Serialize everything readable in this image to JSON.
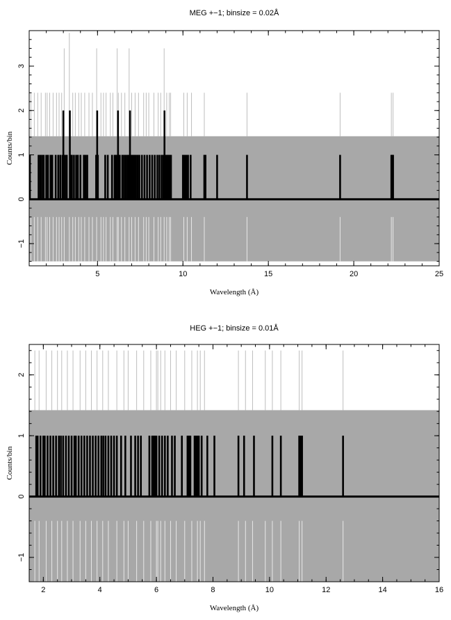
{
  "chart_data": [
    {
      "type": "line",
      "title": "MEG +−1; binsize = 0.02Å",
      "xlabel": "Wavelength (Å)",
      "ylabel": "Counts/bin",
      "xlim": [
        1.0,
        25.0
      ],
      "ylim": [
        -1.5,
        3.8
      ],
      "xticks": [
        5,
        10,
        15,
        20,
        25
      ],
      "yticks": [
        -1,
        0,
        1,
        2,
        3
      ],
      "band": {
        "name": "background band",
        "lower": -1.4,
        "upper": 1.42,
        "color": "#a8a8a8"
      },
      "colors": {
        "series": "#000000",
        "band": "#a8a8a8",
        "upper_spikes": "#bdbdbd",
        "lower_spikes": "#e8e8e8"
      },
      "series": [
        {
          "name": "counts",
          "x": [
            1.04,
            1.55,
            1.65,
            1.75,
            1.85,
            2.0,
            2.1,
            2.25,
            2.35,
            2.55,
            2.7,
            2.82,
            2.95,
            3.0,
            3.1,
            3.2,
            3.38,
            3.45,
            3.5,
            3.62,
            3.75,
            3.85,
            4.0,
            4.2,
            4.3,
            4.4,
            4.92,
            4.98,
            5.02,
            5.45,
            5.6,
            5.85,
            6.0,
            6.05,
            6.1,
            6.2,
            6.25,
            6.3,
            6.45,
            6.55,
            6.65,
            6.75,
            6.82,
            6.9,
            6.95,
            7.05,
            7.15,
            7.25,
            7.35,
            7.45,
            7.6,
            7.75,
            7.9,
            8.05,
            8.2,
            8.35,
            8.5,
            8.62,
            8.75,
            8.85,
            8.92,
            9.0,
            9.05,
            9.1,
            9.15,
            9.22,
            9.3,
            10.0,
            10.1,
            10.2,
            10.3,
            10.45,
            11.25,
            11.32,
            12.0,
            13.75,
            19.2,
            22.2,
            22.25,
            22.3
          ],
          "y": [
            1,
            1,
            1,
            1,
            1,
            1,
            1,
            1,
            1,
            1,
            1,
            1,
            1,
            2,
            1,
            1,
            2,
            1,
            1,
            1,
            1,
            1,
            1,
            1,
            1,
            1,
            1,
            2,
            1,
            1,
            1,
            1,
            1,
            1,
            1,
            2,
            1,
            1,
            1,
            1,
            1,
            1,
            1,
            2,
            1,
            1,
            1,
            1,
            1,
            1,
            1,
            1,
            1,
            1,
            1,
            1,
            1,
            1,
            1,
            1,
            2,
            1,
            1,
            1,
            1,
            1,
            1,
            1,
            1,
            1,
            1,
            1,
            1,
            1,
            1,
            1,
            1,
            1,
            1,
            1
          ]
        },
        {
          "name": "upper spikes",
          "x": [
            1.1,
            1.3,
            1.5,
            1.7,
            1.95,
            2.05,
            2.2,
            2.4,
            2.6,
            2.75,
            2.9,
            3.05,
            3.35,
            3.55,
            3.7,
            3.9,
            4.05,
            4.25,
            4.5,
            4.7,
            4.95,
            5.2,
            5.35,
            5.5,
            5.75,
            5.9,
            6.15,
            6.22,
            6.4,
            6.6,
            6.85,
            7.0,
            7.2,
            7.4,
            7.7,
            7.85,
            8.0,
            8.3,
            8.55,
            8.7,
            8.9,
            9.05,
            9.2,
            9.28,
            10.05,
            10.25,
            10.5,
            11.25,
            13.75,
            19.2,
            22.2,
            22.3
          ],
          "y": [
            2.4,
            2.4,
            2.4,
            2.4,
            2.4,
            2.4,
            2.4,
            2.4,
            2.4,
            2.4,
            2.4,
            3.4,
            3.75,
            2.4,
            2.4,
            2.4,
            2.4,
            2.4,
            2.4,
            2.4,
            3.4,
            2.4,
            2.4,
            2.4,
            2.4,
            2.4,
            3.4,
            2.4,
            2.4,
            2.4,
            3.4,
            2.4,
            2.4,
            2.4,
            2.4,
            2.4,
            2.4,
            2.4,
            2.4,
            2.4,
            3.4,
            2.4,
            2.4,
            2.4,
            2.4,
            2.4,
            2.4,
            2.4,
            2.4,
            2.4,
            2.4,
            2.4
          ]
        }
      ]
    },
    {
      "type": "line",
      "title": "HEG +−1; binsize = 0.01Å",
      "xlabel": "Wavelength (Å)",
      "ylabel": "Counts/bin",
      "xlim": [
        1.5,
        16.0
      ],
      "ylim": [
        -1.4,
        2.5
      ],
      "xticks": [
        2,
        4,
        6,
        8,
        10,
        12,
        14,
        16
      ],
      "yticks": [
        -1,
        0,
        1,
        2
      ],
      "band": {
        "name": "background band",
        "lower": -1.4,
        "upper": 1.42,
        "color": "#a8a8a8"
      },
      "colors": {
        "series": "#000000",
        "band": "#a8a8a8",
        "upper_spikes": "#bdbdbd",
        "lower_spikes": "#e8e8e8"
      },
      "series": [
        {
          "name": "counts",
          "x": [
            1.75,
            1.8,
            1.9,
            2.0,
            2.05,
            2.15,
            2.25,
            2.35,
            2.45,
            2.55,
            2.62,
            2.7,
            2.8,
            2.9,
            3.0,
            3.1,
            3.15,
            3.25,
            3.35,
            3.45,
            3.55,
            3.65,
            3.75,
            3.85,
            3.95,
            4.05,
            4.12,
            4.2,
            4.3,
            4.4,
            4.5,
            4.6,
            4.75,
            4.9,
            5.1,
            5.25,
            5.35,
            5.45,
            5.75,
            5.85,
            5.9,
            5.95,
            6.0,
            6.1,
            6.2,
            6.3,
            6.4,
            6.55,
            6.65,
            6.9,
            7.1,
            7.15,
            7.2,
            7.35,
            7.4,
            7.45,
            7.5,
            7.6,
            7.8,
            8.05,
            8.9,
            9.1,
            9.45,
            10.1,
            10.4,
            11.05,
            11.1,
            11.15,
            12.6
          ],
          "y": [
            1,
            1,
            1,
            1,
            1,
            1,
            1,
            1,
            1,
            1,
            1,
            1,
            1,
            1,
            1,
            1,
            1,
            1,
            1,
            1,
            1,
            1,
            1,
            1,
            1,
            1,
            1,
            1,
            1,
            1,
            1,
            1,
            1,
            1,
            1,
            1,
            1,
            1,
            1,
            1,
            1,
            1,
            1,
            1,
            1,
            1,
            1,
            1,
            1,
            1,
            1,
            1,
            1,
            1,
            1,
            1,
            1,
            1,
            1,
            1,
            1,
            1,
            1,
            1,
            1,
            1,
            1,
            1,
            1
          ]
        },
        {
          "name": "upper spikes",
          "x": [
            1.7,
            1.85,
            2.1,
            2.3,
            2.5,
            2.65,
            2.85,
            3.05,
            3.3,
            3.5,
            3.7,
            3.9,
            4.1,
            4.3,
            4.6,
            4.85,
            5.0,
            5.3,
            5.55,
            5.8,
            6.0,
            6.05,
            6.15,
            6.3,
            6.5,
            6.7,
            7.0,
            7.25,
            7.45,
            7.55,
            7.7,
            8.9,
            9.15,
            9.4,
            9.85,
            10.1,
            10.4,
            11.05,
            11.15,
            12.6
          ],
          "y": [
            2.4,
            2.4,
            2.4,
            2.4,
            2.4,
            2.4,
            2.4,
            2.4,
            2.4,
            2.4,
            2.4,
            2.4,
            2.4,
            2.4,
            2.4,
            2.4,
            2.4,
            2.4,
            2.4,
            2.4,
            2.4,
            2.4,
            2.4,
            2.4,
            2.4,
            2.4,
            2.4,
            2.4,
            2.4,
            2.4,
            2.4,
            2.4,
            2.4,
            2.4,
            2.4,
            2.4,
            2.4,
            2.4,
            2.4,
            2.4
          ]
        }
      ]
    }
  ]
}
